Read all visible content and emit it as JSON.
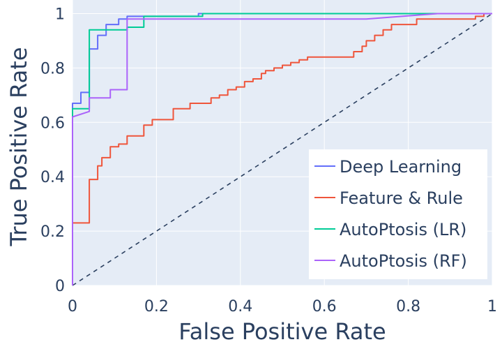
{
  "chart_data": {
    "type": "line",
    "xlabel": "False Positive Rate",
    "ylabel": "True Positive Rate",
    "xlim": [
      0,
      1
    ],
    "ylim": [
      0,
      1.05
    ],
    "x_ticks": [
      0,
      0.2,
      0.4,
      0.6,
      0.8,
      1
    ],
    "y_ticks": [
      0,
      0.2,
      0.4,
      0.6,
      0.8,
      1
    ],
    "x_tick_labels": [
      "0",
      "0.2",
      "0.4",
      "0.6",
      "0.8",
      "1"
    ],
    "y_tick_labels": [
      "0",
      "0.2",
      "0.4",
      "0.6",
      "0.8",
      "1"
    ],
    "grid": true,
    "legend_position": "bottom-right",
    "colors": {
      "plot_bg": "#e5ecf6",
      "grid": "#ffffff",
      "chance_line": "#2a3f5f"
    },
    "series": [
      {
        "name": "Deep Learning",
        "color": "#636efa",
        "points": [
          [
            0,
            0
          ],
          [
            0,
            0.65
          ],
          [
            0,
            0.67
          ],
          [
            0.02,
            0.67
          ],
          [
            0.02,
            0.71
          ],
          [
            0.04,
            0.71
          ],
          [
            0.04,
            0.87
          ],
          [
            0.06,
            0.87
          ],
          [
            0.06,
            0.92
          ],
          [
            0.08,
            0.92
          ],
          [
            0.08,
            0.96
          ],
          [
            0.11,
            0.96
          ],
          [
            0.11,
            0.98
          ],
          [
            0.13,
            0.98
          ],
          [
            0.13,
            0.99
          ],
          [
            0.3,
            0.99
          ],
          [
            0.3,
            1.0
          ],
          [
            1,
            1.0
          ]
        ]
      },
      {
        "name": "Feature & Rule",
        "color": "#ef553b",
        "points": [
          [
            0,
            0
          ],
          [
            0,
            0.23
          ],
          [
            0.04,
            0.23
          ],
          [
            0.04,
            0.39
          ],
          [
            0.06,
            0.39
          ],
          [
            0.06,
            0.44
          ],
          [
            0.07,
            0.44
          ],
          [
            0.07,
            0.47
          ],
          [
            0.09,
            0.47
          ],
          [
            0.09,
            0.51
          ],
          [
            0.11,
            0.51
          ],
          [
            0.11,
            0.52
          ],
          [
            0.13,
            0.52
          ],
          [
            0.13,
            0.55
          ],
          [
            0.17,
            0.55
          ],
          [
            0.17,
            0.59
          ],
          [
            0.19,
            0.59
          ],
          [
            0.19,
            0.61
          ],
          [
            0.24,
            0.61
          ],
          [
            0.24,
            0.65
          ],
          [
            0.28,
            0.65
          ],
          [
            0.28,
            0.67
          ],
          [
            0.33,
            0.67
          ],
          [
            0.33,
            0.69
          ],
          [
            0.35,
            0.69
          ],
          [
            0.35,
            0.7
          ],
          [
            0.37,
            0.7
          ],
          [
            0.37,
            0.72
          ],
          [
            0.39,
            0.72
          ],
          [
            0.39,
            0.73
          ],
          [
            0.41,
            0.73
          ],
          [
            0.41,
            0.75
          ],
          [
            0.43,
            0.75
          ],
          [
            0.43,
            0.76
          ],
          [
            0.45,
            0.76
          ],
          [
            0.45,
            0.78
          ],
          [
            0.46,
            0.78
          ],
          [
            0.46,
            0.79
          ],
          [
            0.48,
            0.79
          ],
          [
            0.48,
            0.8
          ],
          [
            0.5,
            0.8
          ],
          [
            0.5,
            0.81
          ],
          [
            0.52,
            0.81
          ],
          [
            0.52,
            0.82
          ],
          [
            0.54,
            0.82
          ],
          [
            0.54,
            0.83
          ],
          [
            0.56,
            0.83
          ],
          [
            0.56,
            0.84
          ],
          [
            0.67,
            0.84
          ],
          [
            0.67,
            0.86
          ],
          [
            0.69,
            0.86
          ],
          [
            0.69,
            0.88
          ],
          [
            0.7,
            0.88
          ],
          [
            0.7,
            0.9
          ],
          [
            0.72,
            0.9
          ],
          [
            0.72,
            0.92
          ],
          [
            0.74,
            0.92
          ],
          [
            0.74,
            0.94
          ],
          [
            0.76,
            0.94
          ],
          [
            0.76,
            0.96
          ],
          [
            0.82,
            0.96
          ],
          [
            0.82,
            0.98
          ],
          [
            0.96,
            0.98
          ],
          [
            0.96,
            0.99
          ],
          [
            0.98,
            0.99
          ],
          [
            0.98,
            1.0
          ],
          [
            1,
            1.0
          ]
        ]
      },
      {
        "name": "AutoPtosis (LR)",
        "color": "#00cc96",
        "points": [
          [
            0,
            0
          ],
          [
            0,
            0.64
          ],
          [
            0,
            0.65
          ],
          [
            0.04,
            0.65
          ],
          [
            0.04,
            0.94
          ],
          [
            0.13,
            0.94
          ],
          [
            0.13,
            0.95
          ],
          [
            0.17,
            0.95
          ],
          [
            0.17,
            0.99
          ],
          [
            0.31,
            0.99
          ],
          [
            0.31,
            1.0
          ],
          [
            1,
            1.0
          ]
        ]
      },
      {
        "name": "AutoPtosis (RF)",
        "color": "#ab63fa",
        "points": [
          [
            0,
            0
          ],
          [
            0,
            0.62
          ],
          [
            0.04,
            0.64
          ],
          [
            0.04,
            0.69
          ],
          [
            0.09,
            0.69
          ],
          [
            0.09,
            0.72
          ],
          [
            0.13,
            0.72
          ],
          [
            0.13,
            0.98
          ],
          [
            0.7,
            0.98
          ],
          [
            0.87,
            1.0
          ],
          [
            1,
            1.0
          ]
        ]
      }
    ]
  }
}
